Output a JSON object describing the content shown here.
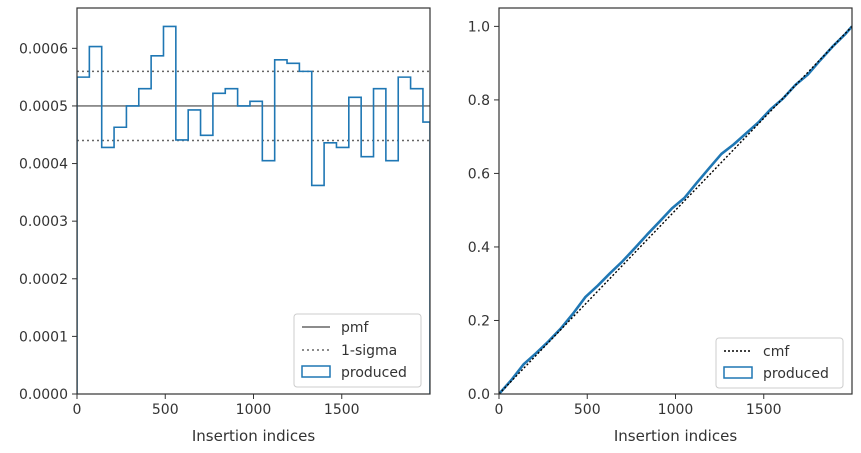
{
  "colors": {
    "produced": "#1f77b4",
    "reference": "#666666",
    "cmf": "#000000",
    "axes": "#333333"
  },
  "chart_data": [
    {
      "type": "histogram",
      "xlabel": "Insertion indices",
      "ylabel": "",
      "xlim": [
        0,
        2000
      ],
      "ylim": [
        0,
        0.00067
      ],
      "x_ticks": [
        0,
        500,
        1000,
        1500
      ],
      "x_tick_labels": [
        "0",
        "500",
        "1000",
        "1500"
      ],
      "y_ticks": [
        0,
        0.0001,
        0.0002,
        0.0003,
        0.0004,
        0.0005,
        0.0006
      ],
      "y_tick_labels": [
        "0.0000",
        "0.0001",
        "0.0002",
        "0.0003",
        "0.0004",
        "0.0005",
        "0.0006"
      ],
      "legend_position": "lower right",
      "bin_edges": [
        0,
        70,
        140,
        210,
        280,
        350,
        420,
        490,
        560,
        630,
        700,
        770,
        840,
        910,
        980,
        1050,
        1120,
        1190,
        1260,
        1330,
        1400,
        1470,
        1540,
        1610,
        1680,
        1750,
        1820,
        1890,
        1960,
        2000
      ],
      "produced": [
        0.00055,
        0.000603,
        0.000428,
        0.000463,
        0.0005,
        0.00053,
        0.000587,
        0.000638,
        0.000441,
        0.000493,
        0.000449,
        0.000522,
        0.00053,
        0.0005,
        0.000508,
        0.000405,
        0.00058,
        0.000574,
        0.00056,
        0.000362,
        0.000436,
        0.000428,
        0.000515,
        0.000412,
        0.00053,
        0.000405,
        0.00055,
        0.00053,
        0.000472
      ],
      "pmf": 0.0005,
      "sigma_band": [
        0.00044,
        0.00056
      ],
      "legend": [
        "pmf",
        "1-sigma",
        "produced"
      ]
    },
    {
      "type": "line",
      "xlabel": "Insertion indices",
      "ylabel": "",
      "xlim": [
        0,
        2000
      ],
      "ylim": [
        0,
        1.05
      ],
      "x_ticks": [
        0,
        500,
        1000,
        1500
      ],
      "x_tick_labels": [
        "0",
        "500",
        "1000",
        "1500"
      ],
      "y_ticks": [
        0,
        0.2,
        0.4,
        0.6,
        0.8,
        1.0
      ],
      "y_tick_labels": [
        "0.0",
        "0.2",
        "0.4",
        "0.6",
        "0.8",
        "1.0"
      ],
      "legend_position": "lower right",
      "cmf": {
        "x": [
          0,
          2000
        ],
        "y": [
          0,
          1.0
        ]
      },
      "produced": {
        "x": [
          0,
          70,
          140,
          210,
          280,
          350,
          420,
          490,
          560,
          630,
          700,
          770,
          840,
          910,
          980,
          1050,
          1120,
          1190,
          1260,
          1330,
          1400,
          1470,
          1540,
          1610,
          1680,
          1750,
          1820,
          1890,
          1960,
          2000
        ],
        "y": [
          0,
          0.038,
          0.081,
          0.111,
          0.143,
          0.178,
          0.219,
          0.264,
          0.295,
          0.329,
          0.361,
          0.397,
          0.434,
          0.469,
          0.505,
          0.533,
          0.574,
          0.614,
          0.653,
          0.679,
          0.709,
          0.739,
          0.775,
          0.804,
          0.841,
          0.869,
          0.908,
          0.945,
          0.978,
          1.0
        ]
      },
      "legend": [
        "cmf",
        "produced"
      ]
    }
  ]
}
